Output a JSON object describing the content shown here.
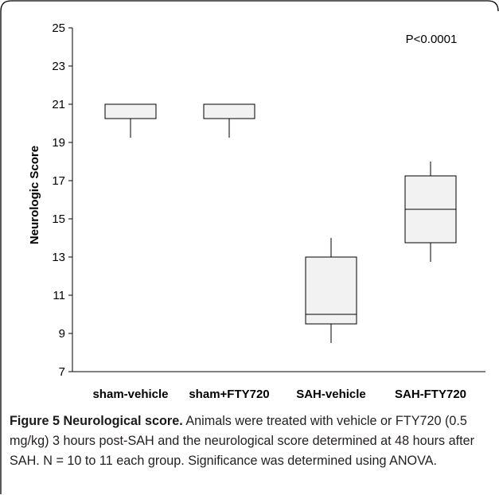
{
  "chart_data": {
    "type": "box",
    "ylabel": "Neurologic Score",
    "ylim": [
      7,
      25
    ],
    "yticks": [
      7,
      9,
      11,
      13,
      15,
      17,
      19,
      21,
      23,
      25
    ],
    "categories": [
      "sham-vehicle",
      "sham+FTY720",
      "SAH-vehicle",
      "SAH-FTY720"
    ],
    "boxes": [
      {
        "category": "sham-vehicle",
        "min": 19.25,
        "q1": 20.25,
        "median": 21,
        "q3": 21,
        "max": 21
      },
      {
        "category": "sham+FTY720",
        "min": 19.25,
        "q1": 20.25,
        "median": 21,
        "q3": 21,
        "max": 21
      },
      {
        "category": "SAH-vehicle",
        "min": 8.5,
        "q1": 9.5,
        "median": 10,
        "q3": 13,
        "max": 14
      },
      {
        "category": "SAH-FTY720",
        "min": 12.75,
        "q1": 13.75,
        "median": 15.5,
        "q3": 17.25,
        "max": 18
      }
    ],
    "annotation": "P<0.0001",
    "grid": false,
    "box_fill": "#f2f2f2",
    "stroke_color": "#000000"
  },
  "caption": {
    "title": "Figure 5 Neurological score.",
    "text": "Animals were treated with vehicle or FTY720 (0.5 mg/kg) 3 hours post-SAH and the neurological score determined at 48 hours after SAH. N = 10 to 11 each group. Significance was determined using ANOVA."
  },
  "frame_color": "#000000"
}
